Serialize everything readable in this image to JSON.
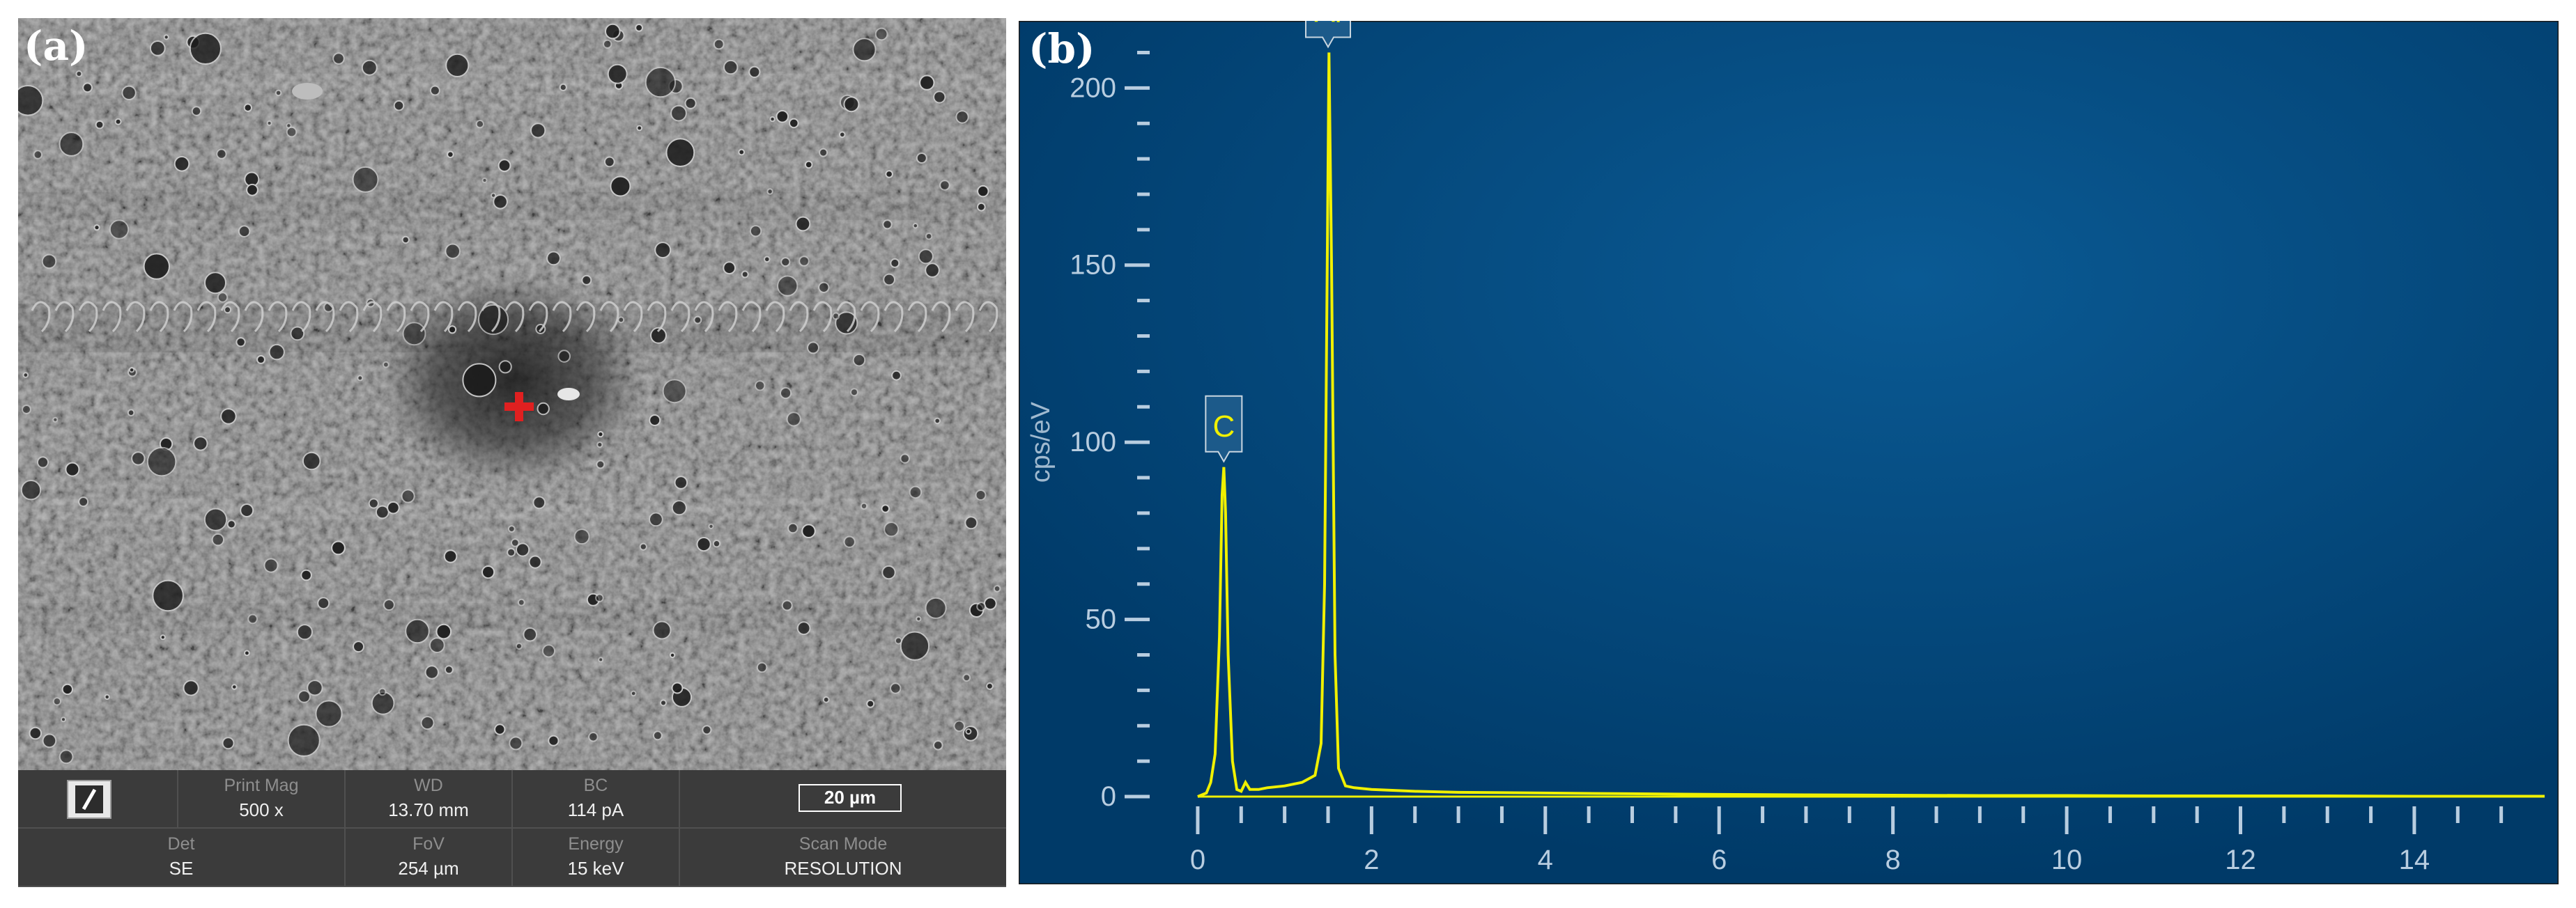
{
  "panel_a": {
    "letter": "(a)",
    "info_bar": {
      "print_mag_label": "Print Mag",
      "print_mag_value": "500 x",
      "wd_label": "WD",
      "wd_value": "13.70 mm",
      "bc_label": "BC",
      "bc_value": "114 pA",
      "scale_bar": "20 µm",
      "det_label": "Det",
      "det_value": "SE",
      "fov_label": "FoV",
      "fov_value": "254 µm",
      "energy_label": "Energy",
      "energy_value": "15 keV",
      "scan_mode_label": "Scan Mode",
      "scan_mode_value": "RESOLUTION"
    },
    "marker_color": "#e02020"
  },
  "panel_b": {
    "letter": "(b)"
  },
  "chart_data": {
    "type": "line",
    "title": "",
    "xlabel": "",
    "ylabel": "cps/eV",
    "xlim": [
      -0.2,
      15.5
    ],
    "ylim": [
      0,
      215
    ],
    "x_ticks": [
      0,
      2,
      4,
      6,
      8,
      10,
      12,
      14
    ],
    "y_ticks": [
      0,
      50,
      100,
      150,
      200
    ],
    "grid": false,
    "background_color": "#00467a",
    "series": [
      {
        "color": "#f0f000",
        "x": [
          0.0,
          0.1,
          0.15,
          0.2,
          0.25,
          0.28,
          0.3,
          0.32,
          0.35,
          0.4,
          0.45,
          0.5,
          0.55,
          0.6,
          0.7,
          0.8,
          1.0,
          1.2,
          1.35,
          1.42,
          1.46,
          1.49,
          1.51,
          1.54,
          1.58,
          1.62,
          1.7,
          1.8,
          2.0,
          2.5,
          3.0,
          4.0,
          5.0,
          6.0,
          7.0,
          8.0,
          9.0,
          10.0,
          11.0,
          12.0,
          13.0,
          14.0,
          15.0,
          15.5
        ],
        "y": [
          0,
          1,
          4,
          12,
          45,
          85,
          93,
          80,
          40,
          10,
          2,
          1.5,
          4,
          2,
          2,
          2.5,
          3,
          4,
          6,
          15,
          60,
          150,
          210,
          150,
          40,
          8,
          3,
          2.5,
          2,
          1.5,
          1.2,
          1.0,
          0.8,
          0.6,
          0.5,
          0.4,
          0.3,
          0.3,
          0.2,
          0.2,
          0.2,
          0.1,
          0.1,
          0.1
        ]
      }
    ],
    "peak_labels": [
      {
        "text": "C",
        "x": 0.3,
        "y": 93
      },
      {
        "text": "Al",
        "x": 1.5,
        "y": 210
      }
    ],
    "label_color": "#f0f000"
  }
}
